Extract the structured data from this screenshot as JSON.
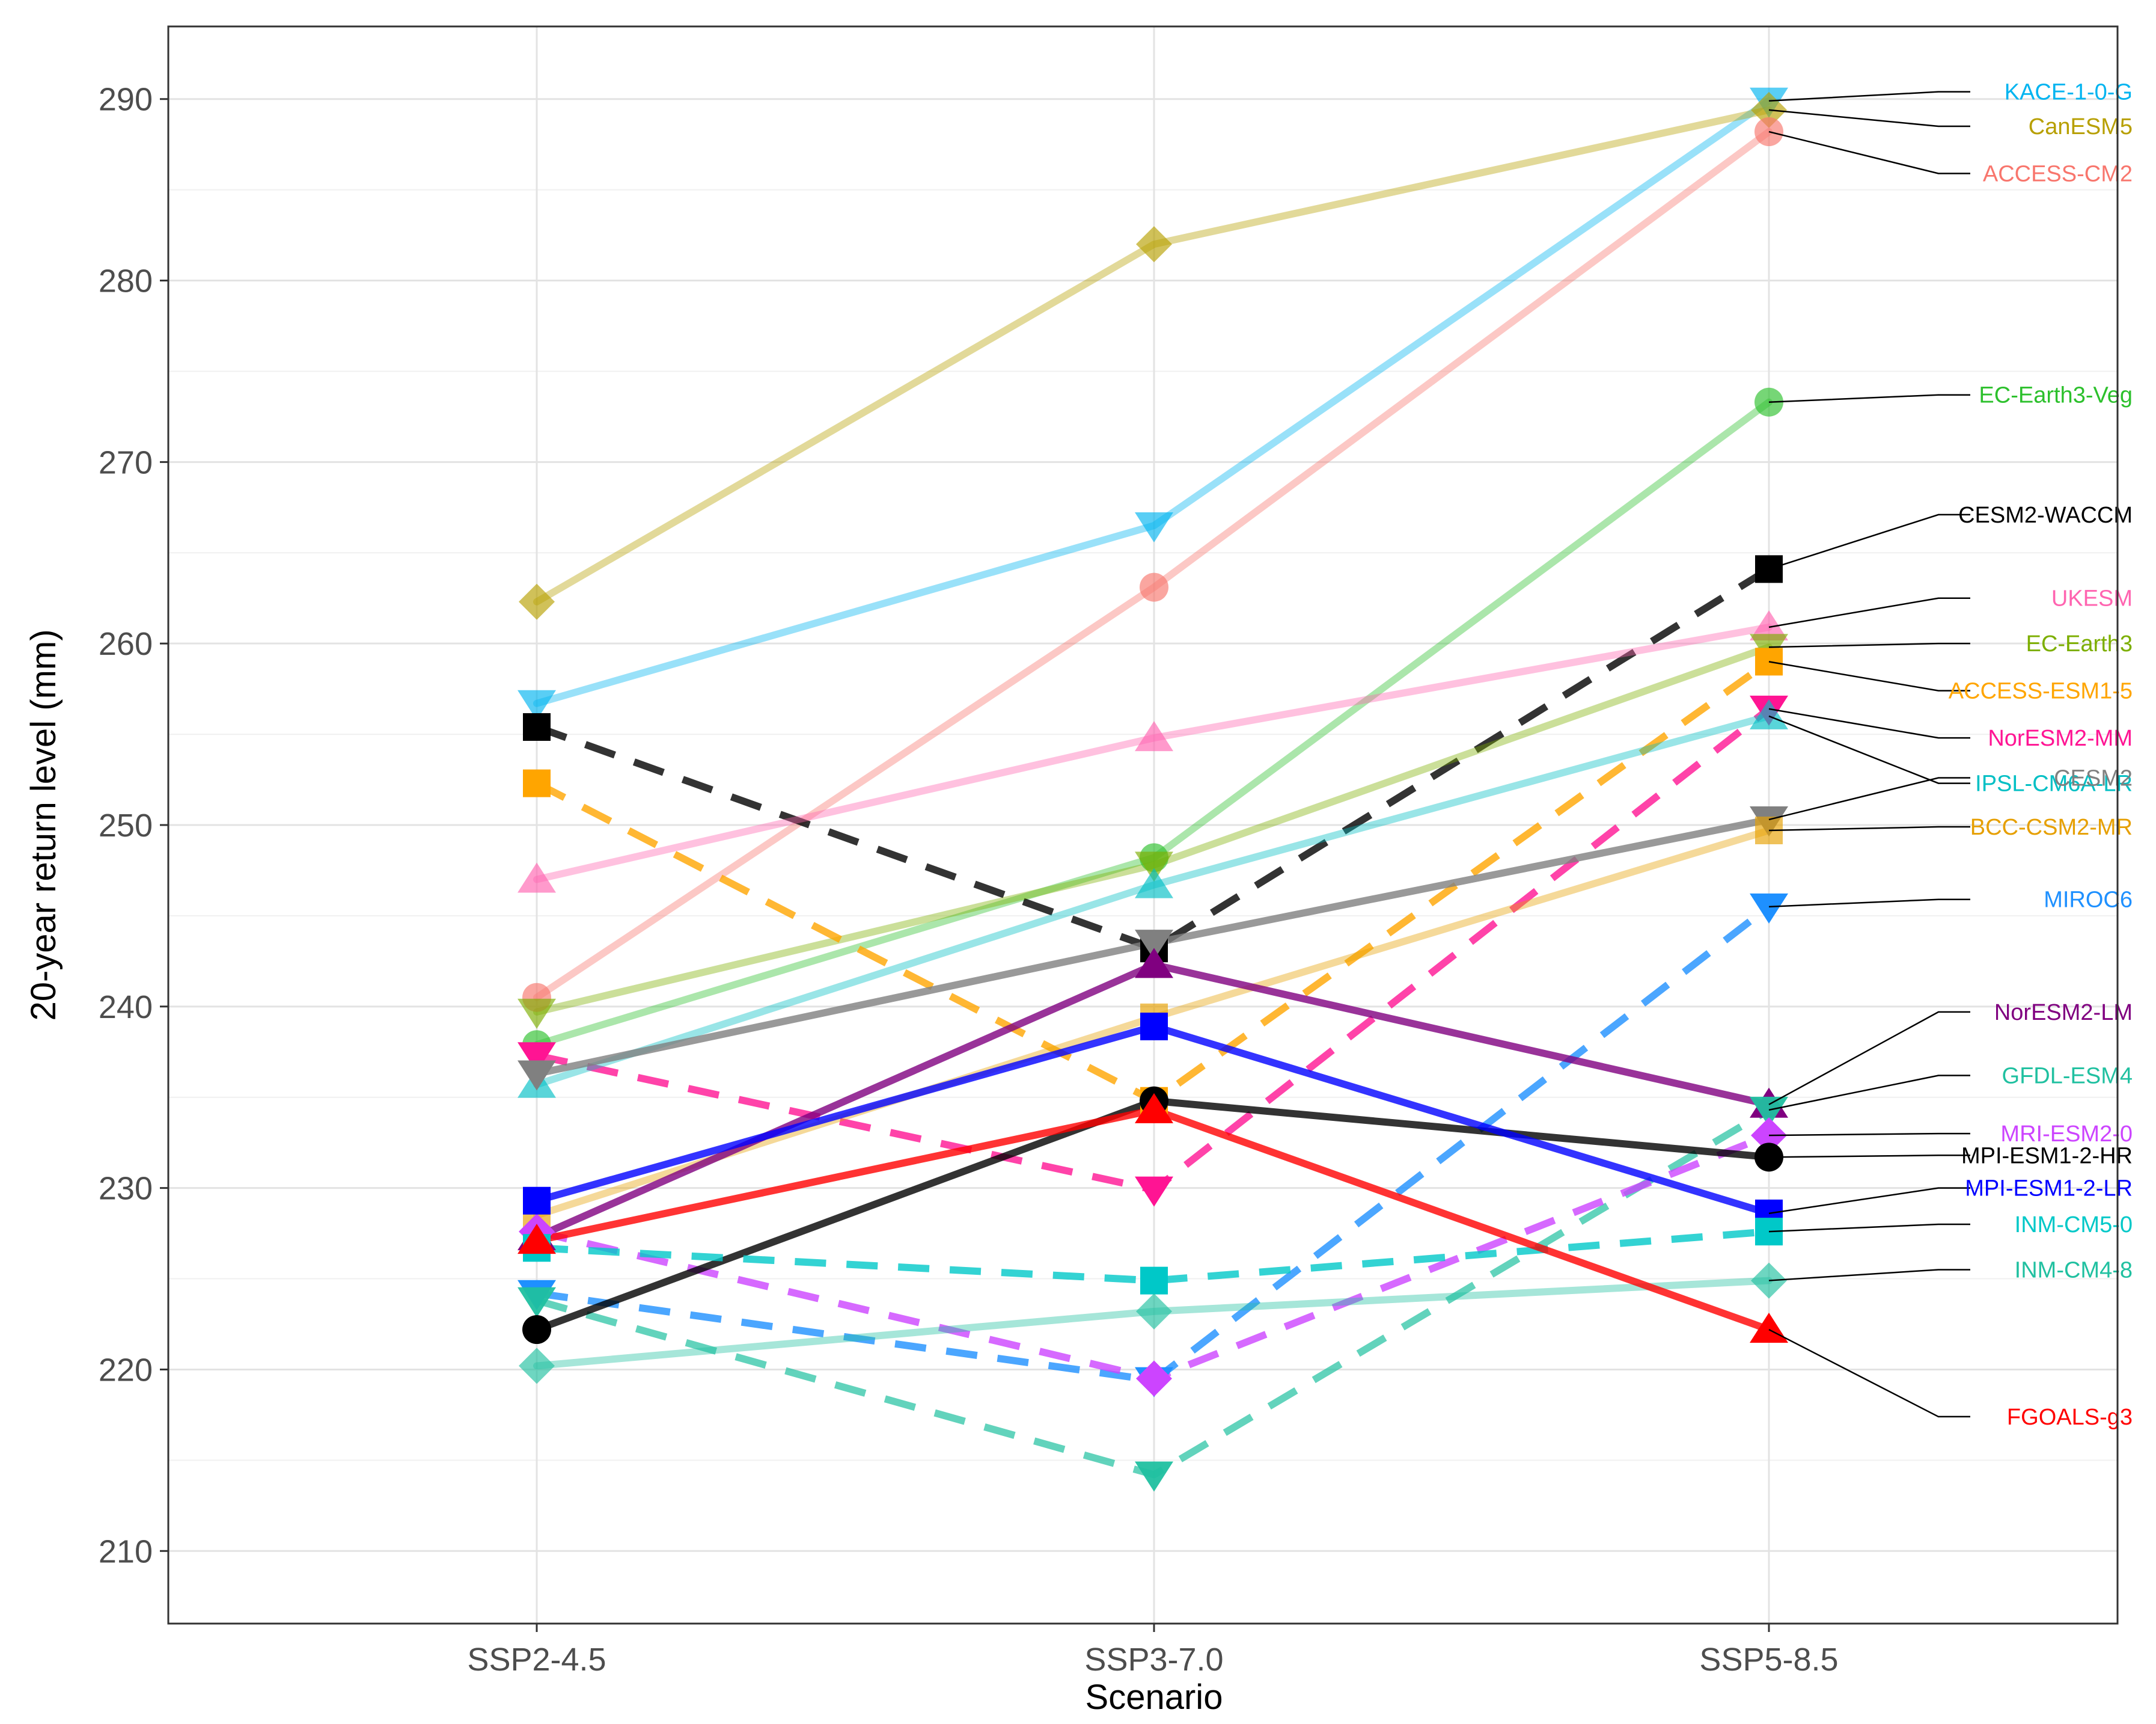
{
  "chart_data": {
    "type": "line",
    "xlabel": "Scenario",
    "ylabel": "20-year return level (mm)",
    "categories": [
      "SSP2-4.5",
      "SSP3-7.0",
      "SSP5-8.5"
    ],
    "ylim": [
      206,
      294
    ],
    "yticks": [
      210,
      220,
      230,
      240,
      250,
      260,
      270,
      280,
      290
    ],
    "grid": true,
    "legend": "direct labels at right",
    "series": [
      {
        "name": "KACE-1-0-G",
        "values": [
          256.7,
          266.5,
          289.9
        ],
        "color": "#00b4f0",
        "line_alpha": 0.4,
        "dash": false,
        "marker": "tri-down",
        "label_y": 290.4
      },
      {
        "name": "CanESM5",
        "values": [
          262.3,
          282.0,
          289.4
        ],
        "color": "#b79f00",
        "line_alpha": 0.4,
        "dash": false,
        "marker": "diamond",
        "label_y": 288.5
      },
      {
        "name": "ACCESS-CM2",
        "values": [
          240.5,
          263.1,
          288.2
        ],
        "color": "#f8766d",
        "line_alpha": 0.4,
        "dash": false,
        "marker": "circle",
        "label_y": 285.9
      },
      {
        "name": "EC-Earth3-Veg",
        "values": [
          237.9,
          248.2,
          273.3
        ],
        "color": "#2cc02c",
        "line_alpha": 0.4,
        "dash": false,
        "marker": "circle",
        "label_y": 273.7
      },
      {
        "name": "CESM2-WACCM",
        "values": [
          255.4,
          243.2,
          264.1
        ],
        "color": "#000000",
        "line_alpha": 0.8,
        "dash": true,
        "marker": "square",
        "label_y": 267.1
      },
      {
        "name": "UKESM",
        "values": [
          247.0,
          254.8,
          260.9
        ],
        "color": "#ff64b0",
        "line_alpha": 0.4,
        "dash": false,
        "marker": "tri-up",
        "label_y": 262.5
      },
      {
        "name": "EC-Earth3",
        "values": [
          239.7,
          247.8,
          259.8
        ],
        "color": "#7cae00",
        "line_alpha": 0.4,
        "dash": false,
        "marker": "tri-down",
        "label_y": 260.0
      },
      {
        "name": "ACCESS-ESM1-5",
        "values": [
          252.3,
          234.8,
          259.0
        ],
        "color": "#ffa500",
        "line_alpha": 0.8,
        "dash": true,
        "marker": "square",
        "label_y": 257.4
      },
      {
        "name": "NorESM2-MM",
        "values": [
          237.3,
          229.9,
          256.4
        ],
        "color": "#ff1493",
        "line_alpha": 0.8,
        "dash": true,
        "marker": "tri-down",
        "label_y": 254.8
      },
      {
        "name": "IPSL-CM6A-LR",
        "values": [
          235.7,
          246.7,
          256.0
        ],
        "color": "#00bfc4",
        "line_alpha": 0.4,
        "dash": false,
        "marker": "tri-up",
        "label_y": 252.3
      },
      {
        "name": "CESM2",
        "values": [
          236.3,
          243.5,
          250.3
        ],
        "color": "#808080",
        "line_alpha": 0.8,
        "dash": false,
        "marker": "tri-down",
        "label_y": 252.6
      },
      {
        "name": "BCC-CSM2-MR",
        "values": [
          228.5,
          239.4,
          249.7
        ],
        "color": "#e69f00",
        "line_alpha": 0.4,
        "dash": false,
        "marker": "square",
        "label_y": 249.9
      },
      {
        "name": "MIROC6",
        "values": [
          224.2,
          219.4,
          245.5
        ],
        "color": "#1e90ff",
        "line_alpha": 0.8,
        "dash": true,
        "marker": "tri-down",
        "label_y": 245.9
      },
      {
        "name": "NorESM2-LM",
        "values": [
          227.3,
          242.3,
          234.6
        ],
        "color": "#800080",
        "line_alpha": 0.8,
        "dash": false,
        "marker": "tri-up",
        "label_y": 239.7
      },
      {
        "name": "GFDL-ESM4",
        "values": [
          223.8,
          214.2,
          234.3
        ],
        "color": "#20c0a0",
        "line_alpha": 0.7,
        "dash": true,
        "marker": "tri-down",
        "label_y": 236.2
      },
      {
        "name": "MRI-ESM2-0",
        "values": [
          227.6,
          219.5,
          232.9
        ],
        "color": "#cc44ff",
        "line_alpha": 0.8,
        "dash": true,
        "marker": "diamond",
        "label_y": 233.0
      },
      {
        "name": "MPI-ESM1-2-HR",
        "values": [
          222.2,
          234.8,
          231.7
        ],
        "color": "#000000",
        "line_alpha": 0.8,
        "dash": false,
        "marker": "circle",
        "label_y": 231.8
      },
      {
        "name": "MPI-ESM1-2-LR",
        "values": [
          229.3,
          238.9,
          228.6
        ],
        "color": "#0000ff",
        "line_alpha": 0.8,
        "dash": false,
        "marker": "square",
        "label_y": 230.0
      },
      {
        "name": "INM-CM5-0",
        "values": [
          226.7,
          224.9,
          227.6
        ],
        "color": "#00c8c8",
        "line_alpha": 0.8,
        "dash": true,
        "marker": "square",
        "label_y": 228.0
      },
      {
        "name": "INM-CM4-8",
        "values": [
          220.2,
          223.2,
          224.9
        ],
        "color": "#20c0a0",
        "line_alpha": 0.4,
        "dash": false,
        "marker": "diamond",
        "label_y": 225.5
      },
      {
        "name": "FGOALS-g3",
        "values": [
          227.1,
          234.3,
          222.2
        ],
        "color": "#ff0000",
        "line_alpha": 0.8,
        "dash": false,
        "marker": "tri-up",
        "label_y": 217.4
      }
    ]
  }
}
